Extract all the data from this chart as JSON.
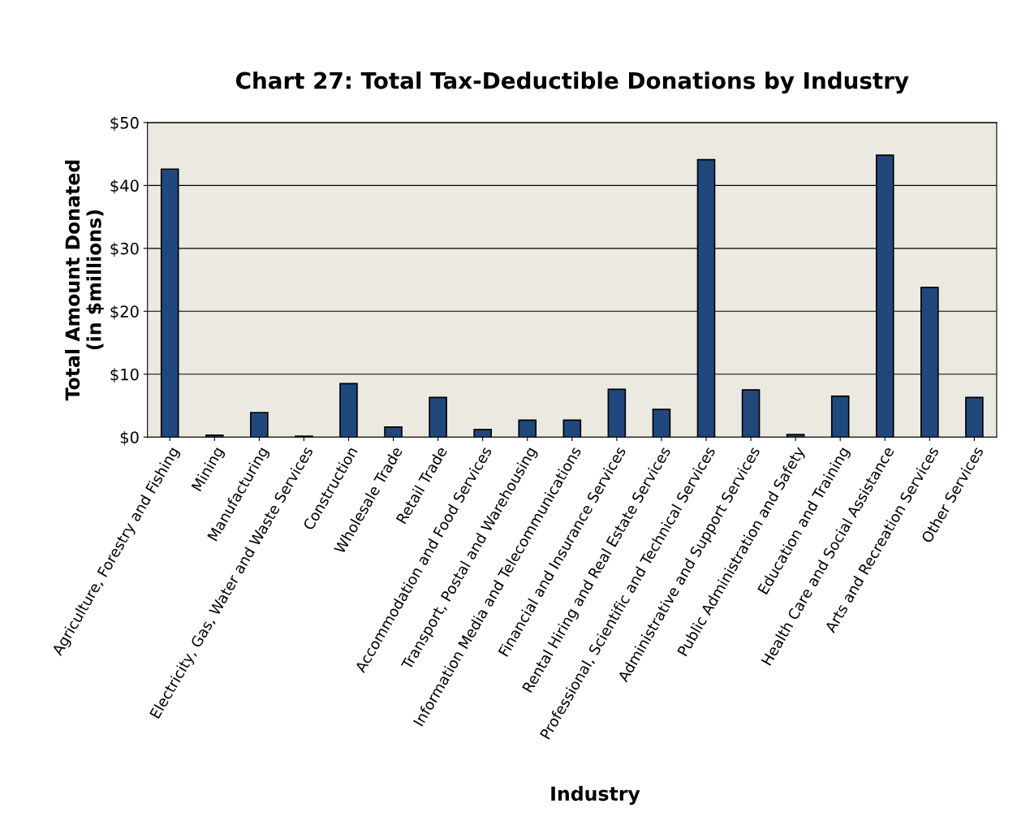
{
  "chart_data": {
    "type": "bar",
    "title": "Chart 27: Total Tax-Deductible Donations by Industry",
    "xlabel": "Industry",
    "ylabel": "Total Amount Donated\n(in $millions)",
    "categories": [
      "Agriculture, Forestry and Fishing",
      "Mining",
      "Manufacturing",
      "Electricity, Gas, Water and Waste Services",
      "Construction",
      "Wholesale Trade",
      "Retail Trade",
      "Accommodation and Food Services",
      "Transport, Postal and Warehousing",
      "Information Media and Telecommunications",
      "Financial and Insurance Services",
      "Rental Hiring and Real Estate Services",
      "Professional, Scientific and Technical Services",
      "Administrative and Support Services",
      "Public Administration and Safety",
      "Education and Training",
      "Health Care and Social Assistance",
      "Arts and Recreation Services",
      "Other Services"
    ],
    "values": [
      42.6,
      0.3,
      3.9,
      0.15,
      8.5,
      1.6,
      6.3,
      1.2,
      2.7,
      2.7,
      7.6,
      4.4,
      44.1,
      7.5,
      0.4,
      6.5,
      44.8,
      23.8,
      6.3
    ],
    "color": "#1f497d",
    "ylim": [
      0,
      50
    ],
    "yticks": [
      {
        "value": 0,
        "label": "$0"
      },
      {
        "value": 10,
        "label": "$10"
      },
      {
        "value": 20,
        "label": "$20"
      },
      {
        "value": 30,
        "label": "$30"
      },
      {
        "value": 40,
        "label": "$40"
      },
      {
        "value": 50,
        "label": "$50"
      }
    ],
    "grid": "y"
  }
}
